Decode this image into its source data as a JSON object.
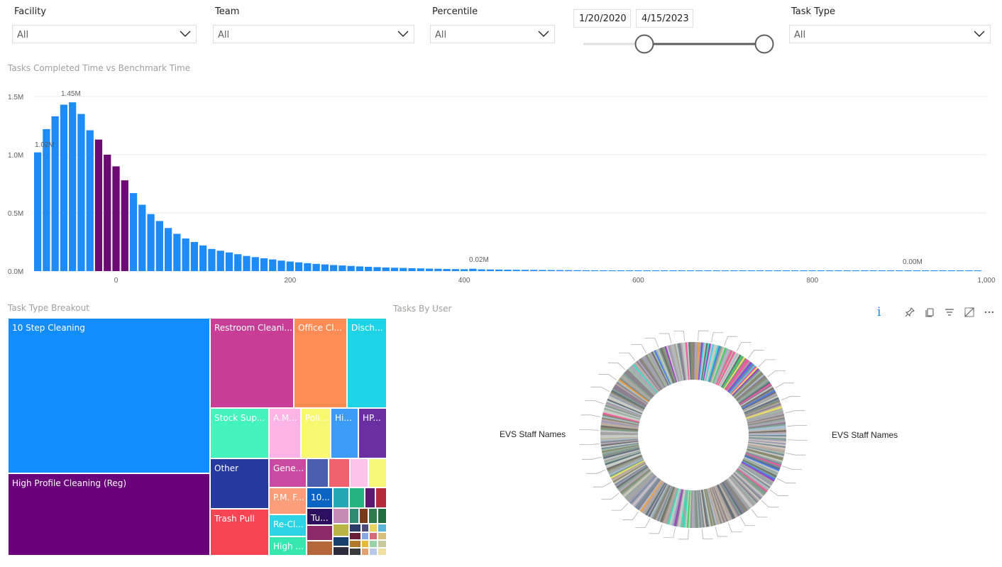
{
  "filters": {
    "facility": {
      "label": "Facility",
      "value": "All"
    },
    "team": {
      "label": "Team",
      "value": "All"
    },
    "percentile": {
      "label": "Percentile",
      "value": "All"
    },
    "date_range": {
      "start": "1/20/2020",
      "end": "4/15/2023"
    },
    "task_type": {
      "label": "Task Type",
      "value": "All"
    }
  },
  "histogram": {
    "title": "Tasks Completed Time vs Benchmark Time",
    "data_labels": {
      "first": "1.02M",
      "peak": "1.45M",
      "mid": "0.02M",
      "tail": "0.00M"
    }
  },
  "treemap": {
    "title": "Task Type Breakout",
    "tiles": [
      {
        "label": "10 Step Cleaning",
        "color": "#118dff"
      },
      {
        "label": "High Profile Cleaning (Reg)",
        "color": "#6b007b"
      },
      {
        "label": "Restroom Cleani...",
        "color": "#c83d95"
      },
      {
        "label": "Office Cl...",
        "color": "#ff8c54"
      },
      {
        "label": "Disch...",
        "color": "#1ed3e6"
      },
      {
        "label": "Stock Sup...",
        "color": "#44f3bd"
      },
      {
        "label": "A.M...",
        "color": "#fbb4e5"
      },
      {
        "label": "Poli...",
        "color": "#f9f871"
      },
      {
        "label": "Hi...",
        "color": "#3b9bf5"
      },
      {
        "label": "HP...",
        "color": "#6b2fa1"
      },
      {
        "label": "Other",
        "color": "#25399e"
      },
      {
        "label": "Gene...",
        "color": "#c94aa0"
      },
      {
        "label": "Trash Pull",
        "color": "#f64454"
      },
      {
        "label": "P.M. F...",
        "color": "#fd9e7a"
      },
      {
        "label": "10...",
        "color": "#0b64c2"
      },
      {
        "label": "Re-Cl...",
        "color": "#2bd5e6"
      },
      {
        "label": "Tu...",
        "color": "#2c0f5f"
      },
      {
        "label": "High ...",
        "color": "#37e7b0"
      }
    ]
  },
  "donut": {
    "title": "Tasks By User",
    "left_label": "EVS Staff Names",
    "right_label": "EVS Staff Names"
  },
  "chart_data": {
    "type": "bar",
    "title": "Tasks Completed Time vs Benchmark Time",
    "xlabel": "",
    "ylabel": "",
    "x_ticks": [
      "0",
      "200",
      "400",
      "600",
      "800",
      "1,000"
    ],
    "y_ticks": [
      "0.0M",
      "0.5M",
      "1.0M",
      "1.5M"
    ],
    "xlim": [
      -95,
      1000
    ],
    "ylim": [
      0,
      1.55
    ],
    "bin_width": 10,
    "highlight_color": "#6b0a72",
    "bar_color": "#1e8bf6",
    "highlight_range": [
      -20,
      10
    ],
    "x": [
      -90,
      -80,
      -70,
      -60,
      -50,
      -40,
      -30,
      -20,
      -10,
      0,
      10,
      20,
      30,
      40,
      50,
      60,
      70,
      80,
      90,
      100,
      110,
      120,
      130,
      140,
      150,
      160,
      170,
      180,
      190,
      200,
      210,
      220,
      230,
      240,
      250,
      260,
      270,
      280,
      290,
      300,
      310,
      320,
      330,
      340,
      350,
      360,
      370,
      380,
      390,
      400,
      410,
      420,
      430,
      440,
      450,
      460,
      470,
      480,
      490,
      500,
      510,
      520,
      530,
      540,
      550,
      560,
      570,
      580,
      590,
      600,
      610,
      620,
      630,
      640,
      650,
      660,
      670,
      680,
      690,
      700,
      710,
      720,
      730,
      740,
      750,
      760,
      770,
      780,
      790,
      800,
      810,
      820,
      830,
      840,
      850,
      860,
      870,
      880,
      890,
      900,
      910,
      920,
      930,
      940,
      950,
      960,
      970,
      980,
      990
    ],
    "values": [
      1.02,
      1.22,
      1.33,
      1.43,
      1.45,
      1.35,
      1.21,
      1.13,
      1.0,
      0.9,
      0.78,
      0.67,
      0.57,
      0.49,
      0.43,
      0.37,
      0.32,
      0.28,
      0.25,
      0.22,
      0.19,
      0.175,
      0.16,
      0.145,
      0.13,
      0.12,
      0.11,
      0.1,
      0.09,
      0.082,
      0.075,
      0.068,
      0.062,
      0.057,
      0.052,
      0.048,
      0.044,
      0.04,
      0.037,
      0.034,
      0.031,
      0.029,
      0.027,
      0.025,
      0.023,
      0.021,
      0.02,
      0.018,
      0.017,
      0.016,
      0.02,
      0.015,
      0.014,
      0.013,
      0.012,
      0.011,
      0.0105,
      0.01,
      0.0095,
      0.009,
      0.0085,
      0.008,
      0.0075,
      0.007,
      0.0065,
      0.006,
      0.0057,
      0.0054,
      0.0051,
      0.0048,
      0.0045,
      0.0042,
      0.004,
      0.0038,
      0.0036,
      0.0034,
      0.0032,
      0.003,
      0.0028,
      0.0026,
      0.0024,
      0.0022,
      0.002,
      0.0019,
      0.0018,
      0.0017,
      0.0016,
      0.0015,
      0.0014,
      0.0013,
      0.0012,
      0.0011,
      0.001,
      0.0009,
      0.0008,
      0.0007,
      0.0006,
      0.0006,
      0.0005,
      0.0005,
      0.0004,
      0.0004,
      0.0003,
      0.0003,
      0.0002,
      0.0002,
      0.0001,
      0.0001,
      0.0001
    ]
  }
}
